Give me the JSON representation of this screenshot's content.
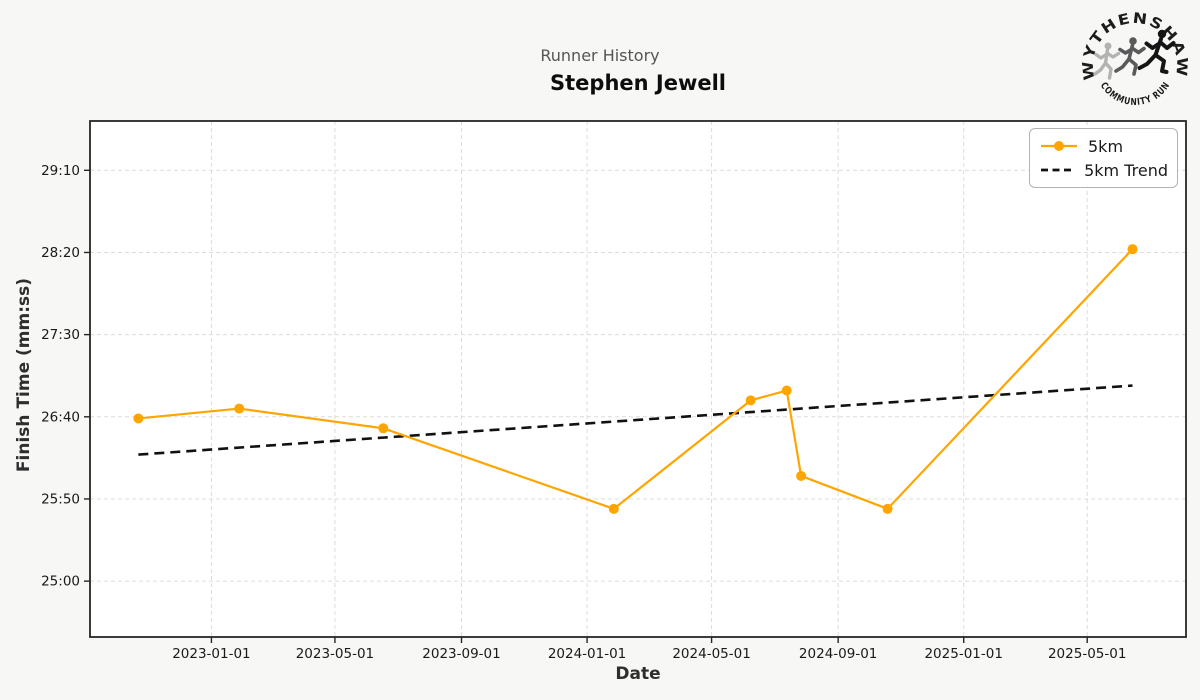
{
  "header": {
    "suptitle": "Runner History",
    "title": "Stephen Jewell"
  },
  "logo": {
    "top_text": "WYTHENSHAWE",
    "bottom_text": "COMMUNITY RUN"
  },
  "axes": {
    "xlabel": "Date",
    "ylabel": "Finish Time (mm:ss)"
  },
  "chart_data": {
    "type": "line",
    "suptitle": "Runner History",
    "title": "Stephen Jewell",
    "xlabel": "Date",
    "ylabel": "Finish Time (mm:ss)",
    "grid": true,
    "legend_position": "upper right",
    "x_tick_labels": [
      "2023-01-01",
      "2023-05-01",
      "2023-09-01",
      "2024-01-01",
      "2024-05-01",
      "2024-09-01",
      "2025-01-01",
      "2025-05-01"
    ],
    "y_tick_labels": [
      "25:00",
      "25:50",
      "26:40",
      "27:30",
      "28:20",
      "29:10"
    ],
    "xlim": [
      "2022-09-05",
      "2025-08-05"
    ],
    "ylim_mmss": [
      "24:26",
      "29:40"
    ],
    "colors": {
      "series": "#FFA500",
      "trend": "#111111",
      "grid": "#dcdcdc",
      "spine": "#262626",
      "plot_background": "#ffffff",
      "figure_background": "#f7f7f5"
    },
    "series": [
      {
        "name": "5km",
        "style": "solid_with_markers",
        "color": "#FFA500",
        "points": [
          {
            "date": "2022-10-22",
            "finish_time": "26:39"
          },
          {
            "date": "2023-01-28",
            "finish_time": "26:45"
          },
          {
            "date": "2023-06-17",
            "finish_time": "26:33"
          },
          {
            "date": "2024-01-27",
            "finish_time": "25:44"
          },
          {
            "date": "2024-06-08",
            "finish_time": "26:50"
          },
          {
            "date": "2024-07-13",
            "finish_time": "26:56"
          },
          {
            "date": "2024-07-27",
            "finish_time": "26:04"
          },
          {
            "date": "2024-10-19",
            "finish_time": "25:44"
          },
          {
            "date": "2025-06-14",
            "finish_time": "28:22"
          }
        ]
      },
      {
        "name": "5km Trend",
        "style": "dashed",
        "color": "#111111",
        "points": [
          {
            "date": "2022-10-22",
            "finish_time": "26:17"
          },
          {
            "date": "2025-06-14",
            "finish_time": "26:59"
          }
        ]
      }
    ]
  }
}
